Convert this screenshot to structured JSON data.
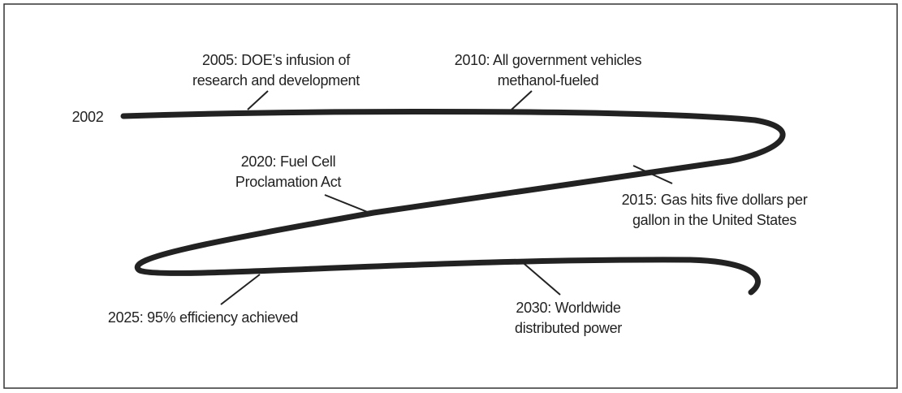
{
  "start_label": "2002",
  "events": [
    {
      "lines": [
        "2005: DOE’s infusion of",
        "research and development"
      ]
    },
    {
      "lines": [
        "2010: All government vehicles",
        "methanol-fueled"
      ]
    },
    {
      "lines": [
        "2015: Gas hits five dollars per",
        "gallon in the United States"
      ]
    },
    {
      "lines": [
        "2020: Fuel Cell",
        "Proclamation Act"
      ]
    },
    {
      "lines": [
        "2025: 95% efficiency achieved"
      ]
    },
    {
      "lines": [
        "2030: Worldwide",
        "distributed power"
      ]
    }
  ]
}
